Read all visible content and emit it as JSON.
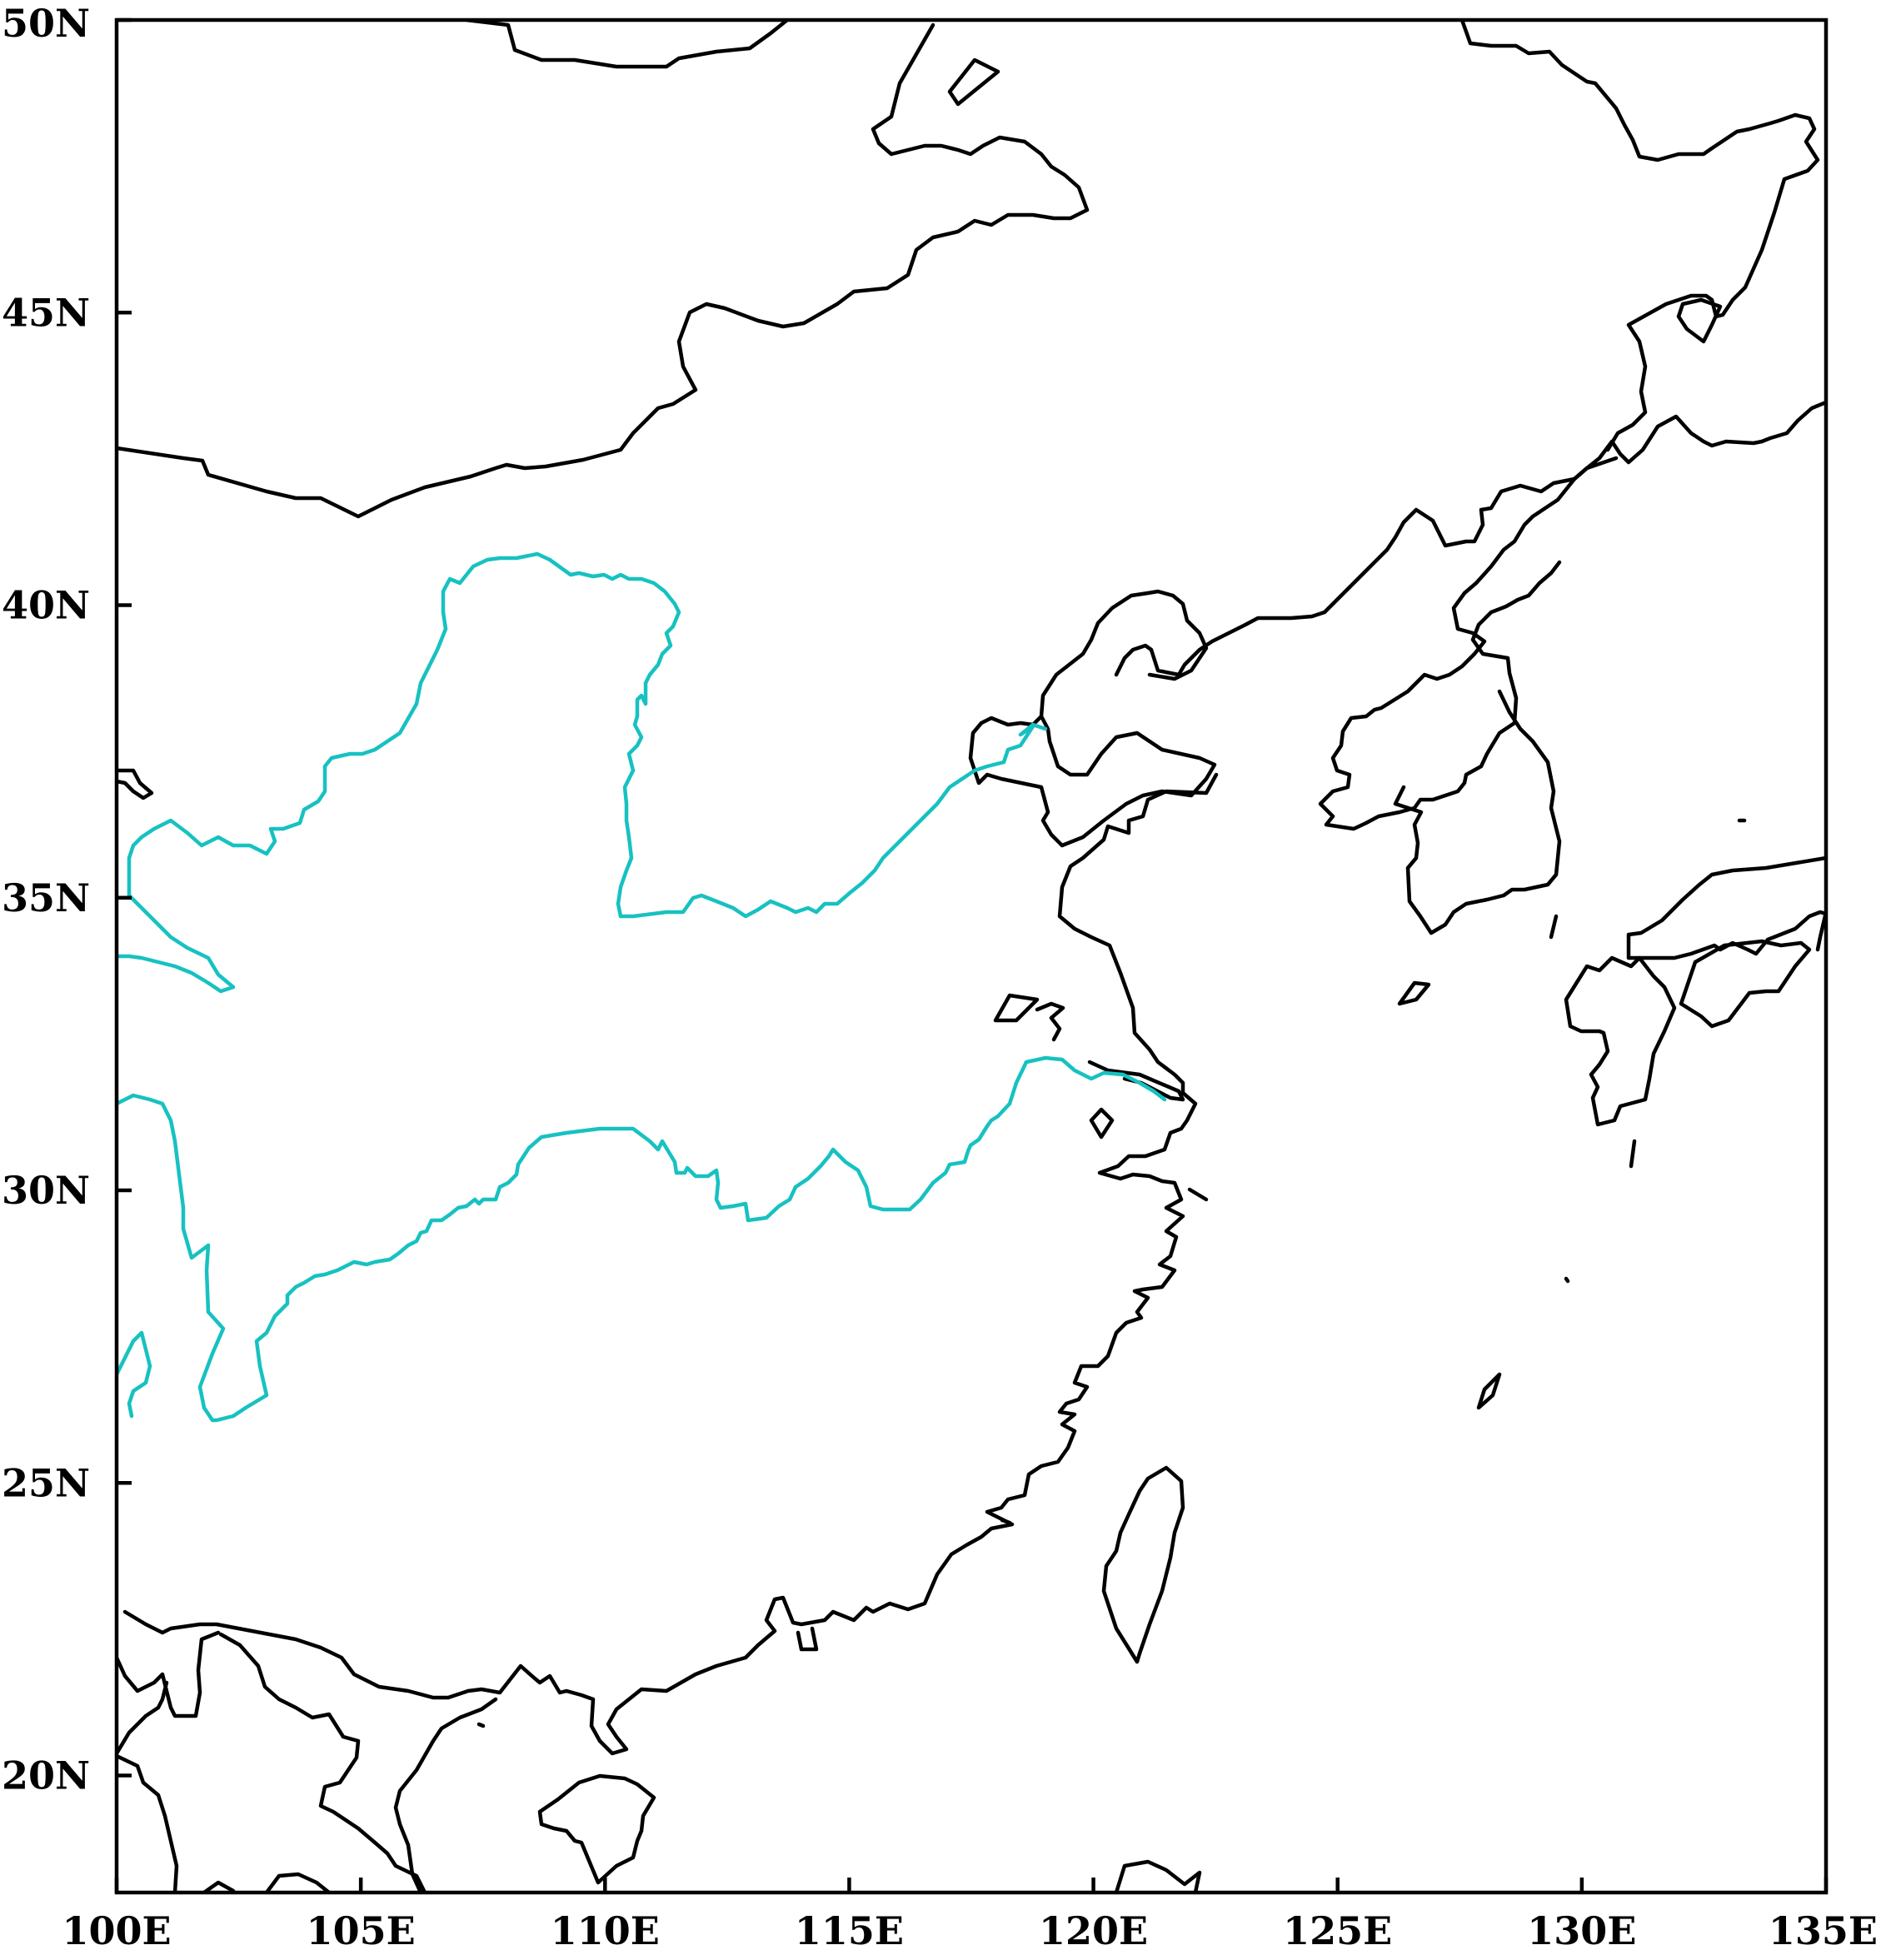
{
  "map": {
    "lon_range": [
      100,
      135
    ],
    "lat_range": [
      18,
      50
    ],
    "x_ticks": [
      {
        "value": 100,
        "label": "100E"
      },
      {
        "value": 105,
        "label": "105E"
      },
      {
        "value": 110,
        "label": "110E"
      },
      {
        "value": 115,
        "label": "115E"
      },
      {
        "value": 120,
        "label": "120E"
      },
      {
        "value": 125,
        "label": "125E"
      },
      {
        "value": 130,
        "label": "130E"
      },
      {
        "value": 135,
        "label": "135E"
      }
    ],
    "y_ticks": [
      {
        "value": 50,
        "label": "50N"
      },
      {
        "value": 45,
        "label": "45N"
      },
      {
        "value": 40,
        "label": "40N"
      },
      {
        "value": 35,
        "label": "35N"
      },
      {
        "value": 30,
        "label": "30N"
      },
      {
        "value": 25,
        "label": "25N"
      },
      {
        "value": 20,
        "label": "20N"
      }
    ],
    "colors": {
      "frame": "#000000",
      "coastline": "#000000",
      "region_outline": "#17c1c1"
    }
  }
}
